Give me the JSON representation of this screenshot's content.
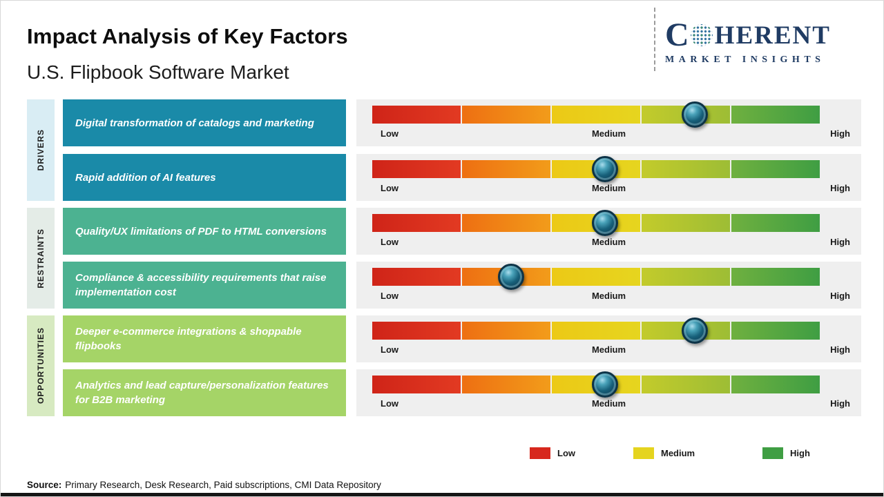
{
  "header": {
    "title": "Impact Analysis of Key Factors",
    "subtitle": "U.S. Flipbook Software Market"
  },
  "logo": {
    "name_start": "C",
    "name_end": "HERENT",
    "tagline": "MARKET INSIGHTS",
    "color": "#1f3b63"
  },
  "sidebar": {
    "groups": [
      {
        "label": "DRIVERS",
        "bg": "#d9edf4"
      },
      {
        "label": "RESTRAINTS",
        "bg": "#e4ece7"
      },
      {
        "label": "OPPORTUNITIES",
        "bg": "#d7eac1"
      }
    ]
  },
  "rows": [
    {
      "group": "Drivers",
      "factor": "Digital transformation of catalogs and marketing",
      "box_bg": "#1a8aa8",
      "marker_percent": 72
    },
    {
      "group": "Drivers",
      "factor": "Rapid addition of AI features",
      "box_bg": "#1a8aa8",
      "marker_percent": 52
    },
    {
      "group": "Restraints",
      "factor": "Quality/UX limitations of PDF to HTML conversions",
      "box_bg": "#4cb291",
      "marker_percent": 52
    },
    {
      "group": "Restraints",
      "factor": "Compliance & accessibility requirements that raise implementation cost",
      "box_bg": "#4cb291",
      "marker_percent": 31
    },
    {
      "group": "Opportunities",
      "factor": "Deeper e-commerce integrations & shoppable flipbooks",
      "box_bg": "#a5d467",
      "marker_percent": 72
    },
    {
      "group": "Opportunities",
      "factor": "Analytics and lead capture/personalization features for B2B marketing",
      "box_bg": "#a5d467",
      "marker_percent": 52
    }
  ],
  "scale": {
    "low": "Low",
    "medium": "Medium",
    "high": "High"
  },
  "legend": [
    {
      "label": "Low",
      "color": "#d7281d"
    },
    {
      "label": "Medium",
      "color": "#e5d41f"
    },
    {
      "label": "High",
      "color": "#3f9e43"
    }
  ],
  "source": {
    "label": "Source:",
    "text": "Primary Research, Desk Research, Paid subscriptions, CMI Data Repository"
  },
  "chart_data": {
    "type": "bar",
    "title": "Impact Analysis of Key Factors",
    "subtitle": "U.S. Flipbook Software Market",
    "scale_labels": [
      "Low",
      "Medium",
      "High"
    ],
    "scale_range": [
      0,
      1
    ],
    "legend": [
      "Low",
      "Medium",
      "High"
    ],
    "legend_colors": [
      "#d7281d",
      "#e5d41f",
      "#3f9e43"
    ],
    "series": [
      {
        "category": "Drivers",
        "factor": "Digital transformation of catalogs and marketing",
        "impact_position": 0.72,
        "impact_level": "Medium-High"
      },
      {
        "category": "Drivers",
        "factor": "Rapid addition of AI features",
        "impact_position": 0.52,
        "impact_level": "Medium"
      },
      {
        "category": "Restraints",
        "factor": "Quality/UX limitations of PDF to HTML conversions",
        "impact_position": 0.52,
        "impact_level": "Medium"
      },
      {
        "category": "Restraints",
        "factor": "Compliance & accessibility requirements that raise implementation cost",
        "impact_position": 0.31,
        "impact_level": "Low-Medium"
      },
      {
        "category": "Opportunities",
        "factor": "Deeper e-commerce integrations & shoppable flipbooks",
        "impact_position": 0.72,
        "impact_level": "Medium-High"
      },
      {
        "category": "Opportunities",
        "factor": "Analytics and lead capture/personalization features for B2B marketing",
        "impact_position": 0.52,
        "impact_level": "Medium"
      }
    ]
  }
}
